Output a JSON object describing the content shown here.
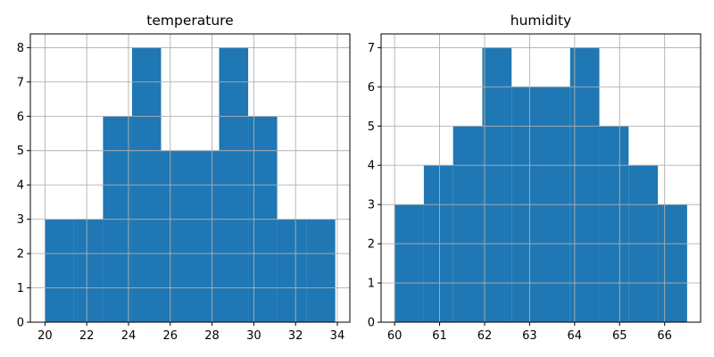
{
  "chart_data": [
    {
      "type": "bar",
      "title": "temperature",
      "xlabel": "",
      "ylabel": "",
      "bin_edges": [
        20.0,
        21.39,
        22.78,
        24.17,
        25.56,
        26.95,
        28.34,
        29.73,
        31.12,
        32.51,
        33.9
      ],
      "values": [
        3,
        3,
        6,
        8,
        5,
        5,
        8,
        6,
        3,
        3
      ],
      "xlim": [
        19.3,
        34.6
      ],
      "ylim": [
        0,
        8.4
      ],
      "xticks": [
        20,
        22,
        24,
        26,
        28,
        30,
        32,
        34
      ],
      "yticks": [
        0,
        1,
        2,
        3,
        4,
        5,
        6,
        7,
        8
      ],
      "grid": true,
      "color": "#1f77b4"
    },
    {
      "type": "bar",
      "title": "humidity",
      "xlabel": "",
      "ylabel": "",
      "bin_edges": [
        60.0,
        60.65,
        61.3,
        61.95,
        62.6,
        63.25,
        63.9,
        64.55,
        65.2,
        65.85,
        66.5
      ],
      "values": [
        3,
        4,
        5,
        7,
        6,
        6,
        7,
        5,
        4,
        3
      ],
      "xlim": [
        59.7,
        66.8
      ],
      "ylim": [
        0,
        7.35
      ],
      "xticks": [
        60,
        61,
        62,
        63,
        64,
        65,
        66
      ],
      "yticks": [
        0,
        1,
        2,
        3,
        4,
        5,
        6,
        7
      ],
      "grid": true,
      "color": "#1f77b4"
    }
  ]
}
